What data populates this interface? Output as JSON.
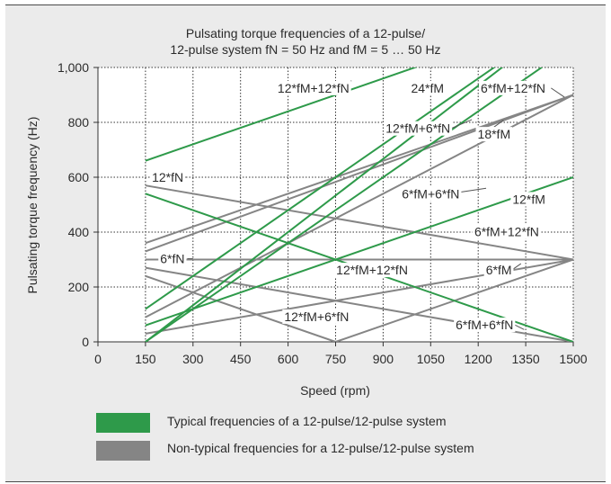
{
  "chart_data": {
    "type": "line",
    "title_lines": [
      "Pulsating torque frequencies of a 12-pulse/",
      "12-pulse system fN = 50 Hz and fM = 5 … 50 Hz"
    ],
    "xlabel": "Speed (rpm)",
    "ylabel": "Pulsating torque frequency (Hz)",
    "xlim": [
      0,
      1500
    ],
    "ylim": [
      0,
      1000
    ],
    "xticks": [
      0,
      150,
      300,
      450,
      600,
      750,
      900,
      1050,
      1200,
      1350,
      1500
    ],
    "yticks": [
      0,
      200,
      400,
      600,
      800,
      1000
    ],
    "xtick_labels": [
      "0",
      "150",
      "300",
      "450",
      "600",
      "750",
      "900",
      "1050",
      "1200",
      "1350",
      "1500"
    ],
    "ytick_labels": [
      "0",
      "200",
      "400",
      "600",
      "800",
      "1,000"
    ],
    "grid": true,
    "colors": {
      "typical": "#2e9a4a",
      "non_typical": "#858585"
    },
    "series": [
      {
        "group": "typical",
        "points": [
          [
            150,
            660
          ],
          [
            1500,
            1200
          ]
        ]
      },
      {
        "group": "typical",
        "points": [
          [
            150,
            120
          ],
          [
            1500,
            1200
          ]
        ]
      },
      {
        "group": "typical",
        "points": [
          [
            150,
            60
          ],
          [
            1500,
            600
          ]
        ]
      },
      {
        "group": "typical",
        "points": [
          [
            150,
            540
          ],
          [
            1500,
            0
          ]
        ]
      },
      {
        "group": "typical",
        "points": [
          [
            150,
            0
          ],
          [
            1500,
            1080
          ]
        ]
      },
      {
        "group": "typical",
        "points": [
          [
            150,
            0
          ],
          [
            1500,
            1200
          ]
        ]
      },
      {
        "group": "non_typical",
        "points": [
          [
            150,
            360
          ],
          [
            1500,
            900
          ]
        ]
      },
      {
        "group": "non_typical",
        "points": [
          [
            150,
            330
          ],
          [
            1500,
            900
          ]
        ]
      },
      {
        "group": "non_typical",
        "points": [
          [
            150,
            90
          ],
          [
            1500,
            900
          ]
        ]
      },
      {
        "group": "non_typical",
        "points": [
          [
            150,
            30
          ],
          [
            1500,
            300
          ]
        ]
      },
      {
        "group": "non_typical",
        "points": [
          [
            150,
            570
          ],
          [
            1500,
            300
          ]
        ]
      },
      {
        "group": "non_typical",
        "points": [
          [
            150,
            300
          ],
          [
            1500,
            300
          ]
        ]
      },
      {
        "group": "non_typical",
        "points": [
          [
            150,
            270
          ],
          [
            1500,
            0
          ]
        ]
      },
      {
        "group": "non_typical",
        "points": [
          [
            150,
            240
          ],
          [
            750,
            0
          ]
        ]
      },
      {
        "group": "non_typical",
        "points": [
          [
            750,
            0
          ],
          [
            1500,
            300
          ]
        ]
      }
    ],
    "annotations": [
      {
        "text": "12*fM+12*fN",
        "x": 680,
        "y": 925,
        "anchor": "middle",
        "leader": [
          [
            775,
            925
          ],
          [
            800,
            952
          ]
        ]
      },
      {
        "text": "24*fM",
        "x": 1040,
        "y": 925,
        "anchor": "middle"
      },
      {
        "text": "6*fM+12*fN",
        "x": 1310,
        "y": 925,
        "anchor": "middle",
        "leader": [
          [
            1430,
            925
          ],
          [
            1472,
            892
          ]
        ]
      },
      {
        "text": "12*fM+6*fN",
        "x": 1010,
        "y": 778,
        "anchor": "middle",
        "leader": [
          [
            1115,
            778
          ],
          [
            1180,
            810
          ]
        ]
      },
      {
        "text": "18*fM",
        "x": 1250,
        "y": 757,
        "anchor": "middle",
        "leader": [
          [
            1250,
            783
          ],
          [
            1280,
            808
          ]
        ]
      },
      {
        "text": "12*fN",
        "x": 220,
        "y": 600,
        "anchor": "middle",
        "leader": [
          [
            270,
            600
          ],
          [
            278,
            600
          ]
        ]
      },
      {
        "text": "6*fM+6*fN",
        "x": 1050,
        "y": 540,
        "anchor": "middle",
        "leader": [
          [
            1140,
            545
          ],
          [
            1225,
            560
          ]
        ]
      },
      {
        "text": "12*fM",
        "x": 1360,
        "y": 520,
        "anchor": "middle"
      },
      {
        "text": "6*fM+12*fN",
        "x": 1290,
        "y": 402,
        "anchor": "middle"
      },
      {
        "text": "6*fN",
        "x": 235,
        "y": 303,
        "anchor": "middle",
        "leader": [
          [
            282,
            303
          ],
          [
            300,
            303
          ]
        ]
      },
      {
        "text": "12*fM+12*fN",
        "x": 865,
        "y": 262,
        "anchor": "middle"
      },
      {
        "text": "6*fM",
        "x": 1265,
        "y": 262,
        "anchor": "middle",
        "leader": [
          [
            1310,
            265
          ],
          [
            1335,
            285
          ]
        ]
      },
      {
        "text": "12*fM+6*fN",
        "x": 690,
        "y": 92,
        "anchor": "middle"
      },
      {
        "text": "6*fM+6*fN",
        "x": 1220,
        "y": 62,
        "anchor": "middle",
        "leader": [
          [
            1310,
            65
          ],
          [
            1345,
            45
          ]
        ]
      }
    ],
    "legend": [
      {
        "label": "Typical frequencies of a 12-pulse/12-pulse system",
        "group": "typical"
      },
      {
        "label": "Non-typical frequencies for a 12-pulse/12-pulse system",
        "group": "non_typical"
      }
    ]
  }
}
